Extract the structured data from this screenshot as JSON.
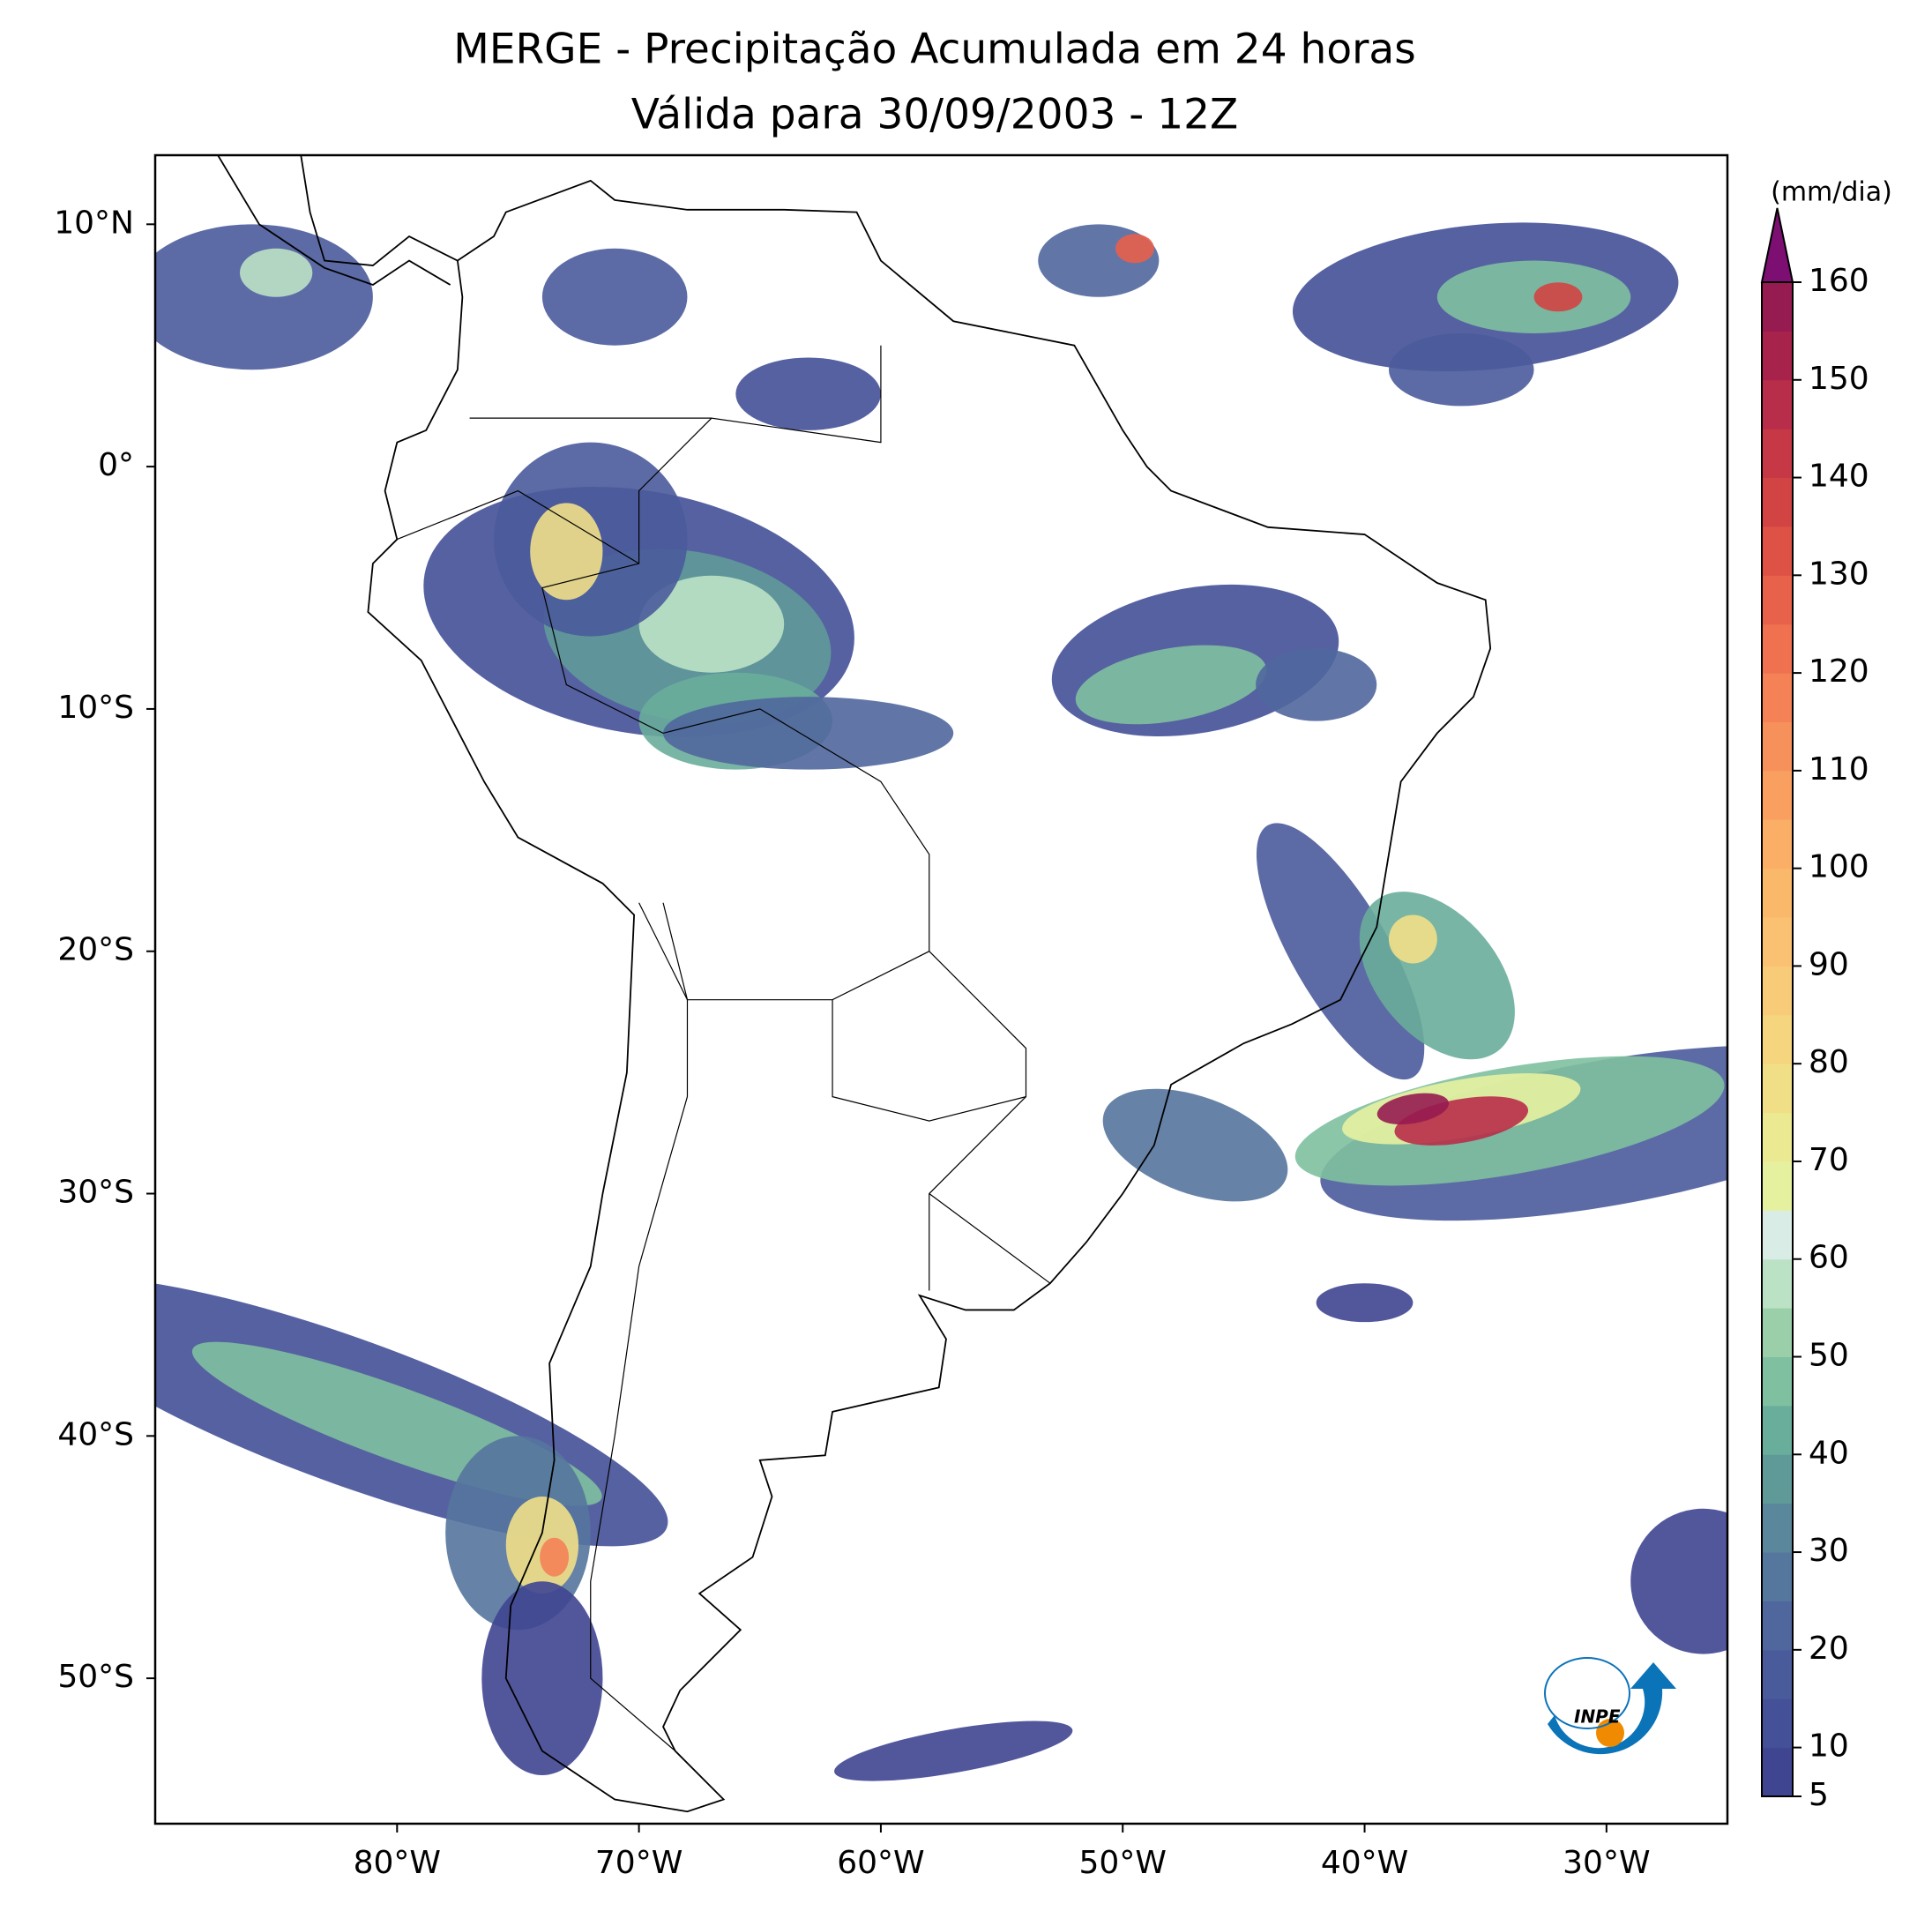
{
  "header": {
    "title": "MERGE - Precipitação Acumulada em 24 horas",
    "subtitle": "Válida para 30/09/2003 - 12Z"
  },
  "map": {
    "lonlim": [
      -90,
      -25
    ],
    "latlim": [
      -56,
      12.85
    ],
    "xticks": [
      {
        "value": -80,
        "label": "80°W"
      },
      {
        "value": -70,
        "label": "70°W"
      },
      {
        "value": -60,
        "label": "60°W"
      },
      {
        "value": -50,
        "label": "50°W"
      },
      {
        "value": -40,
        "label": "40°W"
      },
      {
        "value": -30,
        "label": "30°W"
      }
    ],
    "yticks": [
      {
        "value": 10,
        "label": "10°N"
      },
      {
        "value": 0,
        "label": "0°"
      },
      {
        "value": -10,
        "label": "10°S"
      },
      {
        "value": -20,
        "label": "20°S"
      },
      {
        "value": -30,
        "label": "30°S"
      },
      {
        "value": -40,
        "label": "40°S"
      },
      {
        "value": -50,
        "label": "50°S"
      }
    ]
  },
  "colorbar": {
    "label": "(mm/dia)",
    "lim": [
      5,
      160
    ],
    "ticks": [
      5,
      10,
      20,
      30,
      40,
      50,
      60,
      70,
      80,
      90,
      100,
      110,
      120,
      130,
      140,
      150,
      160
    ],
    "colors": [
      "#3f4591",
      "#445097",
      "#4a5b9b",
      "#50679d",
      "#55769d",
      "#5a879b",
      "#5f9a99",
      "#69ad9b",
      "#7fc0a0",
      "#9bcfaa",
      "#bce2c6",
      "#d9ece6",
      "#e6f1a0",
      "#ece993",
      "#f1df88",
      "#f5d57e",
      "#f7cb77",
      "#f9c171",
      "#fab86b",
      "#fbae66",
      "#f9a061",
      "#f7915b",
      "#f48256",
      "#ef7150",
      "#e8614b",
      "#de5246",
      "#d24443",
      "#c63846",
      "#b82d49",
      "#a8234c",
      "#961b50"
    ],
    "extend_color": "#7d0f73"
  },
  "logo": {
    "text": "INPE"
  }
}
